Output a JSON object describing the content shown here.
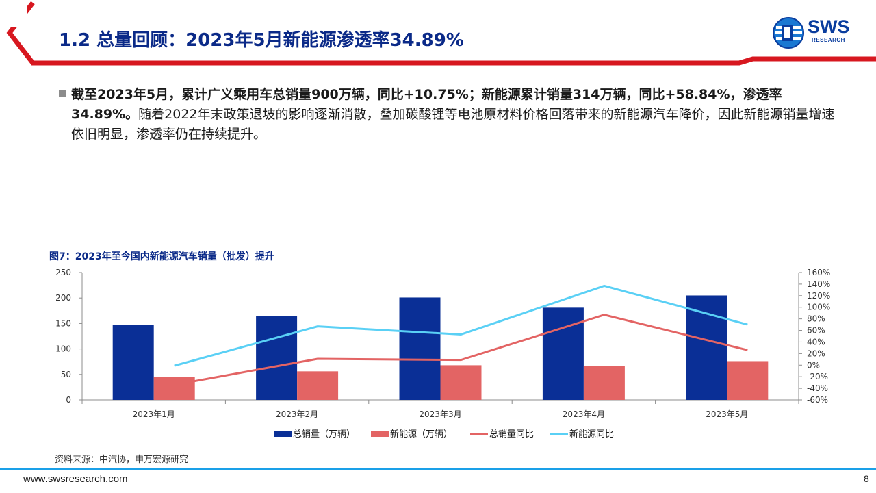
{
  "header": {
    "title": "1.2 总量回顾：2023年5月新能源渗透率34.89%",
    "logo": {
      "name": "SWS",
      "sub": "RESEARCH",
      "icon": "sws-globe-icon"
    },
    "colors": {
      "banner_red": "#d7171f",
      "title_blue": "#0b2a88",
      "logo_blue": "#0a3d9e",
      "footer_blue": "#1aa0e8"
    }
  },
  "bullet": {
    "bold_part": "截至2023年5月，累计广义乘用车总销量900万辆，同比+10.75%；新能源累计销量314万辆，同比+58.84%，渗透率34.89%。",
    "normal_part": "随着2022年末政策退坡的影响逐渐消散，叠加碳酸锂等电池原材料价格回落带来的新能源汽车降价，因此新能源销量增速依旧明显，渗透率仍在持续提升。"
  },
  "chart_data": {
    "type": "bar",
    "title": "图7：2023年至今国内新能源汽车销量（批发）提升",
    "categories": [
      "2023年1月",
      "2023年2月",
      "2023年3月",
      "2023年4月",
      "2023年5月"
    ],
    "series": [
      {
        "name": "总销量（万辆）",
        "type": "bar",
        "axis": "left",
        "color": "#0a2f96",
        "values": [
          147,
          165,
          201,
          181,
          205
        ]
      },
      {
        "name": "新能源（万辆）",
        "type": "bar",
        "axis": "left",
        "color": "#e36464",
        "values": [
          45,
          56,
          68,
          67,
          76
        ]
      },
      {
        "name": "总销量同比",
        "type": "line",
        "axis": "right",
        "color": "#e36464",
        "values": [
          -34,
          11,
          9,
          87,
          26
        ]
      },
      {
        "name": "新能源同比",
        "type": "line",
        "axis": "right",
        "color": "#5ad0f5",
        "values": [
          -1,
          67,
          53,
          137,
          70
        ]
      }
    ],
    "y_left": {
      "min": 0,
      "max": 250,
      "ticks": [
        "0",
        "50",
        "100",
        "150",
        "200",
        "250"
      ]
    },
    "y_right": {
      "min": -60,
      "max": 160,
      "ticks": [
        "-60%",
        "-40%",
        "-20%",
        "0%",
        "20%",
        "40%",
        "60%",
        "80%",
        "100%",
        "120%",
        "140%",
        "160%"
      ]
    },
    "legend_position": "bottom",
    "grid": false
  },
  "source": "资料来源：中汽协，申万宏源研究",
  "footer": {
    "url": "www.swsresearch.com",
    "page": "8"
  }
}
